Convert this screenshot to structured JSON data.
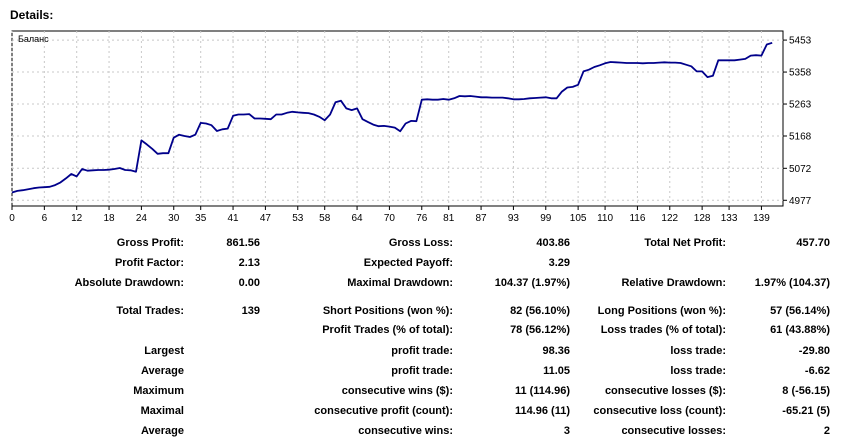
{
  "page": {
    "heading": "Details:"
  },
  "chart_data": {
    "type": "line",
    "title": "Баланс",
    "xlabel": "",
    "ylabel": "",
    "xlim": [
      0,
      143
    ],
    "ylim": [
      4960,
      5480
    ],
    "x_ticks": [
      "0",
      "6",
      "12",
      "18",
      "24",
      "30",
      "35",
      "41",
      "47",
      "53",
      "58",
      "64",
      "70",
      "76",
      "81",
      "87",
      "93",
      "99",
      "105",
      "110",
      "116",
      "122",
      "128",
      "133",
      "139"
    ],
    "y_ticks": [
      "5453",
      "5358",
      "5263",
      "5168",
      "5072",
      "4977"
    ],
    "grid": true,
    "series": [
      {
        "name": "",
        "color": "#00008b",
        "x": [
          0,
          1,
          2,
          3,
          4,
          5,
          6,
          7,
          8,
          9,
          10,
          11,
          12,
          13,
          14,
          15,
          16,
          17,
          18,
          19,
          20,
          21,
          22,
          23,
          24,
          25,
          26,
          27,
          28,
          29,
          30,
          31,
          32,
          33,
          34,
          35,
          36,
          37,
          38,
          39,
          40,
          41,
          42,
          43,
          44,
          45,
          46,
          47,
          48,
          49,
          50,
          51,
          52,
          53,
          54,
          55,
          56,
          57,
          58,
          59,
          60,
          61,
          62,
          63,
          64,
          65,
          66,
          67,
          68,
          69,
          70,
          71,
          72,
          73,
          74,
          75,
          76,
          77,
          78,
          79,
          80,
          81,
          82,
          83,
          84,
          85,
          86,
          87,
          88,
          89,
          90,
          91,
          92,
          93,
          94,
          95,
          96,
          97,
          98,
          99,
          100,
          101,
          102,
          103,
          104,
          105,
          106,
          107,
          108,
          109,
          110,
          111,
          112,
          113,
          114,
          115,
          116,
          117,
          118,
          119,
          120,
          121,
          122,
          123,
          124,
          125,
          126,
          127,
          128,
          129,
          130,
          131,
          132,
          133,
          134,
          135,
          136,
          137,
          138,
          139,
          140,
          141
        ],
        "values": [
          5000,
          5005,
          5007,
          5010,
          5013,
          5015,
          5016,
          5017,
          5022,
          5030,
          5042,
          5055,
          5048,
          5070,
          5065,
          5066,
          5067,
          5067,
          5068,
          5070,
          5073,
          5067,
          5066,
          5062,
          5155,
          5143,
          5130,
          5115,
          5117,
          5117,
          5163,
          5172,
          5168,
          5165,
          5172,
          5207,
          5205,
          5200,
          5183,
          5188,
          5190,
          5228,
          5232,
          5232,
          5233,
          5220,
          5220,
          5219,
          5218,
          5232,
          5232,
          5237,
          5240,
          5238,
          5237,
          5236,
          5232,
          5225,
          5215,
          5232,
          5268,
          5273,
          5250,
          5245,
          5250,
          5218,
          5210,
          5202,
          5197,
          5198,
          5196,
          5193,
          5182,
          5205,
          5213,
          5212,
          5276,
          5277,
          5276,
          5276,
          5278,
          5276,
          5280,
          5287,
          5286,
          5287,
          5285,
          5283,
          5283,
          5282,
          5282,
          5282,
          5280,
          5277,
          5277,
          5278,
          5280,
          5281,
          5282,
          5283,
          5280,
          5280,
          5300,
          5312,
          5314,
          5320,
          5360,
          5365,
          5373,
          5378,
          5384,
          5388,
          5387,
          5386,
          5385,
          5385,
          5385,
          5384,
          5385,
          5385,
          5386,
          5387,
          5386,
          5386,
          5385,
          5380,
          5375,
          5360,
          5360,
          5343,
          5347,
          5393,
          5393,
          5393,
          5393,
          5395,
          5397,
          5407,
          5408,
          5407,
          5440,
          5445
        ]
      }
    ]
  },
  "stats": {
    "gross_profit": {
      "label": "Gross Profit:",
      "value": "861.56"
    },
    "gross_loss": {
      "label": "Gross Loss:",
      "value": "403.86"
    },
    "total_net_profit": {
      "label": "Total Net Profit:",
      "value": "457.70"
    },
    "profit_factor": {
      "label": "Profit Factor:",
      "value": "2.13"
    },
    "expected_payoff": {
      "label": "Expected Payoff:",
      "value": "3.29"
    },
    "absolute_drawdown": {
      "label": "Absolute Drawdown:",
      "value": "0.00"
    },
    "maximal_drawdown": {
      "label": "Maximal Drawdown:",
      "value": "104.37 (1.97%)"
    },
    "relative_drawdown": {
      "label": "Relative Drawdown:",
      "value": "1.97% (104.37)"
    },
    "total_trades": {
      "label": "Total Trades:",
      "value": "139"
    },
    "short_positions": {
      "label": "Short Positions (won %):",
      "value": "82 (56.10%)"
    },
    "long_positions": {
      "label": "Long Positions (won %):",
      "value": "57 (56.14%)"
    },
    "profit_trades": {
      "label": "Profit Trades (% of total):",
      "value": "78 (56.12%)"
    },
    "loss_trades": {
      "label": "Loss trades (% of total):",
      "value": "61 (43.88%)"
    },
    "largest": {
      "label": "Largest",
      "profit_label": "profit trade:",
      "profit_value": "98.36",
      "loss_label": "loss trade:",
      "loss_value": "-29.80"
    },
    "average": {
      "label": "Average",
      "profit_label": "profit trade:",
      "profit_value": "11.05",
      "loss_label": "loss trade:",
      "loss_value": "-6.62"
    },
    "maximum": {
      "label": "Maximum",
      "wins_label": "consecutive wins ($):",
      "wins_value": "11 (114.96)",
      "losses_label": "consecutive losses ($):",
      "losses_value": "8 (-56.15)"
    },
    "maximal": {
      "label": "Maximal",
      "profit_label": "consecutive profit (count):",
      "profit_value": "114.96 (11)",
      "loss_label": "consecutive loss (count):",
      "loss_value": "-65.21 (5)"
    },
    "average_consecutive": {
      "label": "Average",
      "wins_label": "consecutive wins:",
      "wins_value": "3",
      "losses_label": "consecutive losses:",
      "losses_value": "2"
    }
  }
}
